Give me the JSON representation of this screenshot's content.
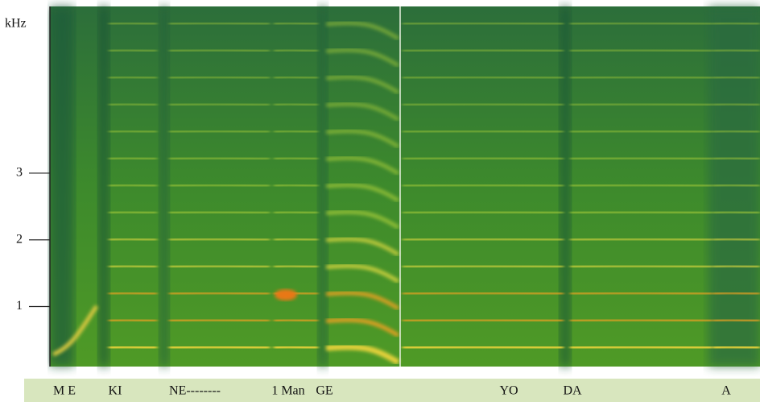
{
  "chart_data": {
    "type": "spectrogram",
    "y_label": "kHz",
    "ylim": [
      0.1,
      5.5
    ],
    "yticks": [
      1,
      2,
      3
    ],
    "categories": [
      "M E",
      "KI",
      "NE--------",
      "1 Man",
      "GE",
      "YO",
      "DA",
      "A"
    ]
  }
}
